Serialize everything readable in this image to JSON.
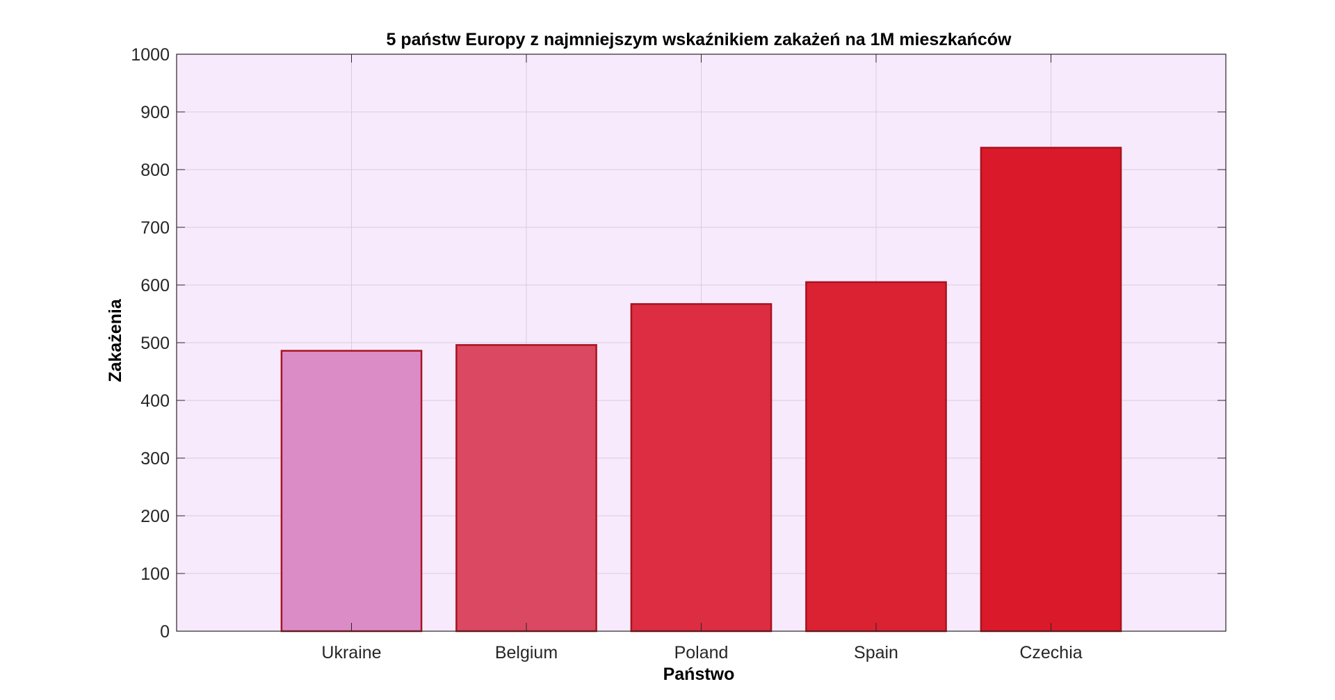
{
  "chart_data": {
    "type": "bar",
    "title": "5 państw Europy z najmniejszym wskaźnikiem zakażeń na 1M mieszkańców",
    "xlabel": "Państwo",
    "ylabel": "Zakażenia",
    "categories": [
      "Ukraine",
      "Belgium",
      "Poland",
      "Spain",
      "Czechia"
    ],
    "values": [
      486,
      496,
      567,
      605,
      838
    ],
    "ylim": [
      0,
      1000
    ],
    "xlim": [
      0,
      6
    ],
    "yticks": [
      0,
      100,
      200,
      300,
      400,
      500,
      600,
      700,
      800,
      900,
      1000
    ],
    "grid": true,
    "colors": {
      "plot_background": "#f8eafd",
      "grid": "#d9cce0",
      "axis": "#262626",
      "bar_edge": "#a8131f",
      "bars": [
        "#db8cc6",
        "#db4862",
        "#dc2d42",
        "#db2233",
        "#da1a2a"
      ]
    }
  }
}
